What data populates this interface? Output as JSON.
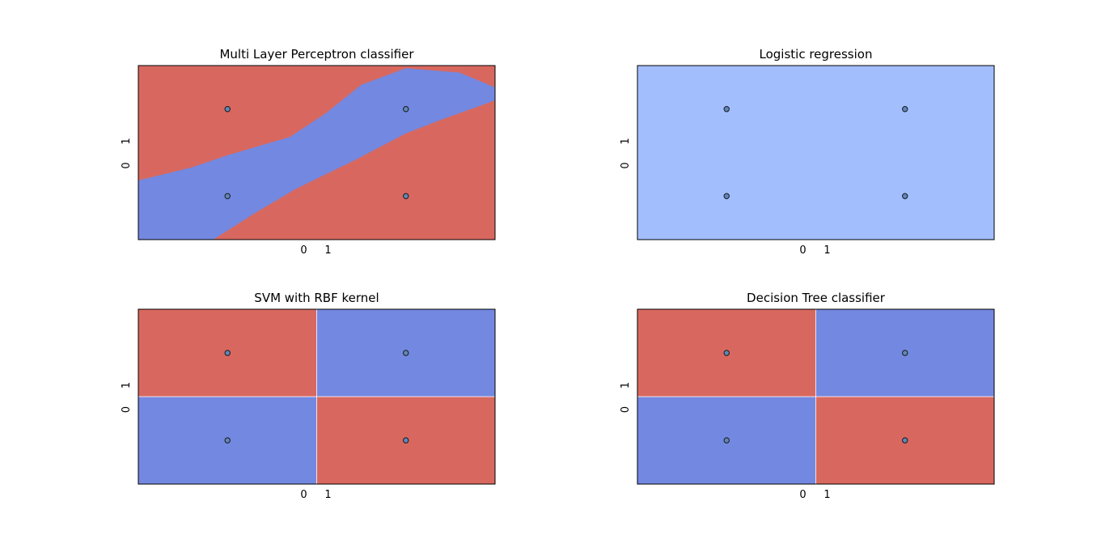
{
  "colors": {
    "red": "#d8685f",
    "blue": "#7388e0",
    "light_blue": "#a3befd",
    "point_fill": "#5f87b8",
    "point_edge": "#1a1a1a"
  },
  "chart_data": [
    {
      "type": "decision-boundary",
      "title": "Multi Layer Perceptron classifier",
      "xlim": [
        -0.5,
        1.5
      ],
      "ylim": [
        -0.5,
        1.5
      ],
      "xticks": [
        "0",
        "1"
      ],
      "yticks": [
        "0",
        "1"
      ],
      "points": [
        [
          0,
          0
        ],
        [
          0,
          1
        ],
        [
          1,
          0
        ],
        [
          1,
          1
        ]
      ],
      "regions": [
        {
          "class": "red",
          "shape": "background"
        },
        {
          "class": "blue",
          "shape": "band along x = y widening toward the top-right"
        }
      ]
    },
    {
      "type": "decision-boundary",
      "title": "Logistic regression",
      "xlim": [
        -0.5,
        1.5
      ],
      "ylim": [
        -0.5,
        1.5
      ],
      "xticks": [
        "0",
        "1"
      ],
      "yticks": [
        "0",
        "1"
      ],
      "points": [
        [
          0,
          0
        ],
        [
          0,
          1
        ],
        [
          1,
          0
        ],
        [
          1,
          1
        ]
      ],
      "regions": [
        {
          "class": "light_blue",
          "shape": "background"
        }
      ]
    },
    {
      "type": "decision-boundary",
      "title": "SVM with RBF kernel",
      "xlim": [
        -0.5,
        1.5
      ],
      "ylim": [
        -0.5,
        1.5
      ],
      "xticks": [
        "0",
        "1"
      ],
      "yticks": [
        "0",
        "1"
      ],
      "points": [
        [
          0,
          0
        ],
        [
          0,
          1
        ],
        [
          1,
          0
        ],
        [
          1,
          1
        ]
      ],
      "regions": [
        {
          "class": "red",
          "x": [
            -0.5,
            0.5
          ],
          "y": [
            0.5,
            1.5
          ]
        },
        {
          "class": "blue",
          "x": [
            0.5,
            1.5
          ],
          "y": [
            0.5,
            1.5
          ]
        },
        {
          "class": "blue",
          "x": [
            -0.5,
            0.5
          ],
          "y": [
            -0.5,
            0.5
          ]
        },
        {
          "class": "red",
          "x": [
            0.5,
            1.5
          ],
          "y": [
            -0.5,
            0.5
          ]
        }
      ]
    },
    {
      "type": "decision-boundary",
      "title": "Decision Tree classifier",
      "xlim": [
        -0.5,
        1.5
      ],
      "ylim": [
        -0.5,
        1.5
      ],
      "xticks": [
        "0",
        "1"
      ],
      "yticks": [
        "0",
        "1"
      ],
      "points": [
        [
          0,
          0
        ],
        [
          0,
          1
        ],
        [
          1,
          0
        ],
        [
          1,
          1
        ]
      ],
      "regions": [
        {
          "class": "red",
          "x": [
            -0.5,
            0.5
          ],
          "y": [
            0.5,
            1.5
          ]
        },
        {
          "class": "blue",
          "x": [
            0.5,
            1.5
          ],
          "y": [
            0.5,
            1.5
          ]
        },
        {
          "class": "blue",
          "x": [
            -0.5,
            0.5
          ],
          "y": [
            -0.5,
            0.5
          ]
        },
        {
          "class": "red",
          "x": [
            0.5,
            1.5
          ],
          "y": [
            -0.5,
            0.5
          ]
        }
      ]
    }
  ]
}
